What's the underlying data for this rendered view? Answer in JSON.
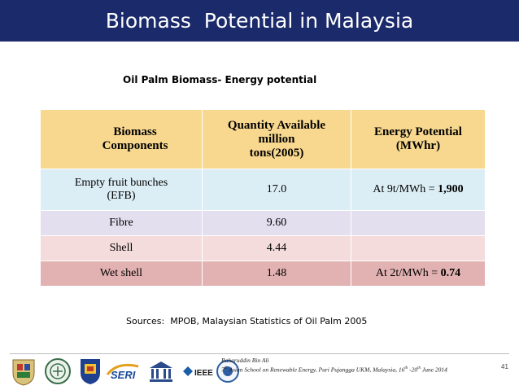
{
  "slide": {
    "title": "Biomass  Potential in Malaysia",
    "subtitle": "Oil Palm Biomass- Energy potential",
    "sources": "Sources:  MPOB, Malaysian Statistics of Oil Palm 2005",
    "page_number": "41",
    "colors": {
      "title_bar": "#1b2a6b",
      "header_row": "#f8d88e",
      "efb_row": "#dceef5",
      "fibre_row": "#e4dfee",
      "shell_row": "#f5dcdc",
      "wet_shell_row": "#e2b1b1"
    }
  },
  "table": {
    "headers": {
      "col1_line1": "Biomass",
      "col1_line2": "Components",
      "col2_line1": "Quantity Available",
      "col2_line2": "million",
      "col2_line3": "tons(2005)",
      "col3_line1": "Energy Potential",
      "col3_line2": "(MWhr)"
    },
    "rows": [
      {
        "component_line1": "Empty fruit bunches",
        "component_line2": "(EFB)",
        "quantity": "17.0",
        "energy_prefix": "At 9t/MWh = ",
        "energy_value": "1,900"
      },
      {
        "component": "Fibre",
        "quantity": "9.60",
        "energy_prefix": "",
        "energy_value": ""
      },
      {
        "component": "Shell",
        "quantity": "4.44",
        "energy_prefix": "",
        "energy_value": ""
      },
      {
        "component": "Wet shell",
        "quantity": "1.48",
        "energy_prefix": "At 2t/MWh = ",
        "energy_value": "0.74"
      }
    ]
  },
  "footer": {
    "author": "Baharuddin Bin Ali",
    "event_num": "7",
    "event_sup": "th",
    "event_text": " Asian School on Renewable Energy, Puri Pujangga UKM, Malaysia, 16",
    "event_sup2": "th",
    "event_mid": " -20",
    "event_sup3": "th",
    "event_end": "  June 2014",
    "logos": [
      "crest-logo",
      "round-seal-logo",
      "university-logo",
      "seri-logo",
      "unesco-logo",
      "ieee-logo",
      "akademi-sains-logo"
    ]
  }
}
